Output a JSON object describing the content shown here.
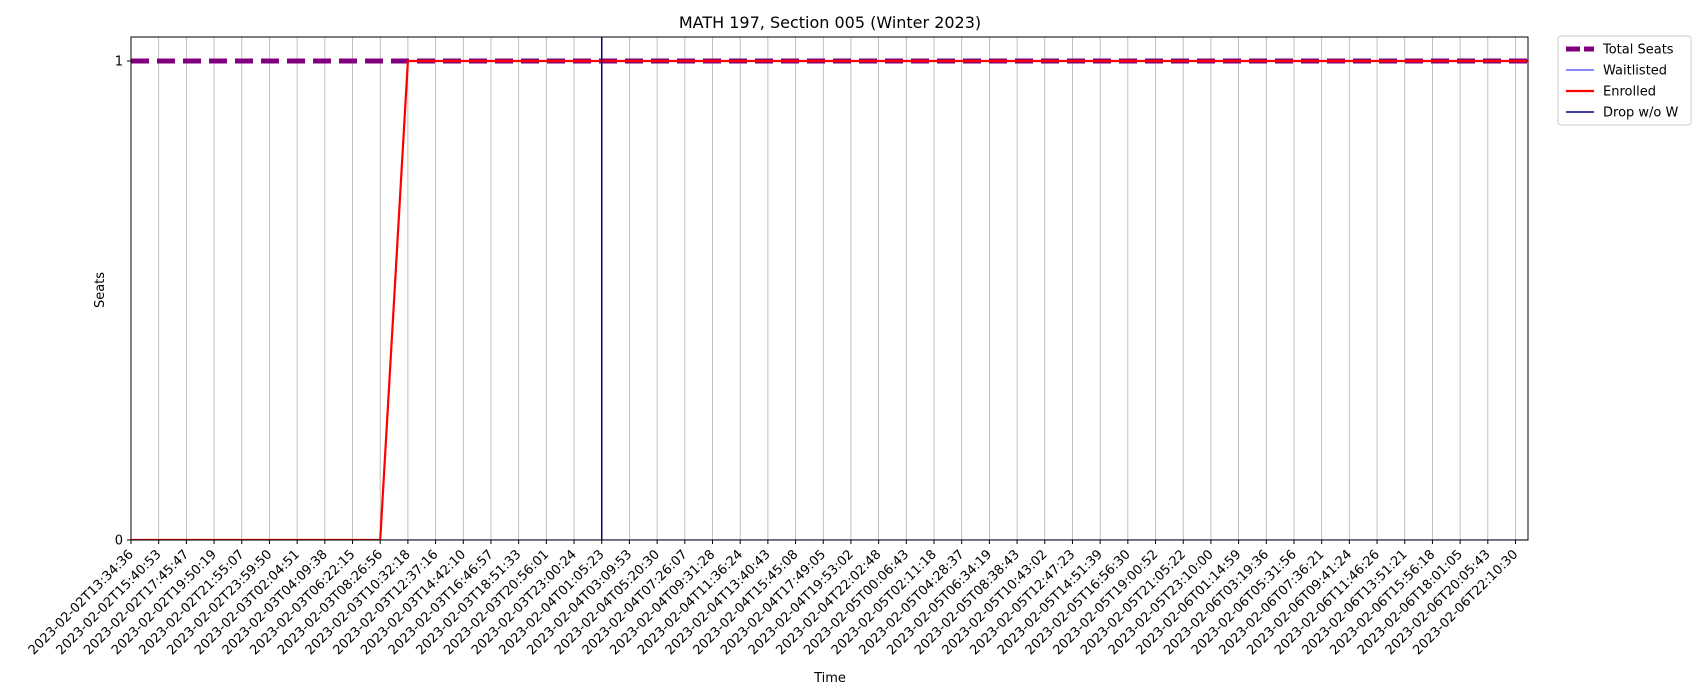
{
  "chart_data": {
    "type": "line",
    "title": "MATH 197, Section 005 (Winter 2023)",
    "xlabel": "Time",
    "ylabel": "Seats",
    "ylim": [
      0,
      1.05
    ],
    "yticks": [
      0,
      1
    ],
    "grid": "x",
    "legend_position": "outside-top-right",
    "x": [
      "2023-02-02T13:34:36",
      "2023-02-02T15:40:53",
      "2023-02-02T17:45:47",
      "2023-02-02T19:50:19",
      "2023-02-02T21:55:07",
      "2023-02-02T23:59:50",
      "2023-02-03T02:04:51",
      "2023-02-03T04:09:38",
      "2023-02-03T06:22:15",
      "2023-02-03T08:26:56",
      "2023-02-03T10:32:18",
      "2023-02-03T12:37:16",
      "2023-02-03T14:42:10",
      "2023-02-03T16:46:57",
      "2023-02-03T18:51:33",
      "2023-02-03T20:56:01",
      "2023-02-03T23:00:24",
      "2023-02-04T01:05:23",
      "2023-02-04T03:09:53",
      "2023-02-04T05:20:30",
      "2023-02-04T07:26:07",
      "2023-02-04T09:31:28",
      "2023-02-04T11:36:24",
      "2023-02-04T13:40:43",
      "2023-02-04T15:45:08",
      "2023-02-04T17:49:05",
      "2023-02-04T19:53:02",
      "2023-02-04T22:02:48",
      "2023-02-05T00:06:43",
      "2023-02-05T02:11:18",
      "2023-02-05T04:28:37",
      "2023-02-05T06:34:19",
      "2023-02-05T08:38:43",
      "2023-02-05T10:43:02",
      "2023-02-05T12:47:23",
      "2023-02-05T14:51:39",
      "2023-02-05T16:56:30",
      "2023-02-05T19:00:52",
      "2023-02-05T21:05:22",
      "2023-02-05T23:10:00",
      "2023-02-06T01:14:59",
      "2023-02-06T03:19:36",
      "2023-02-06T05:31:56",
      "2023-02-06T07:36:21",
      "2023-02-06T09:41:24",
      "2023-02-06T11:46:26",
      "2023-02-06T13:51:21",
      "2023-02-06T15:56:18",
      "2023-02-06T18:01:05",
      "2023-02-06T20:05:43",
      "2023-02-06T22:10:30"
    ],
    "series": [
      {
        "name": "Total Seats",
        "color": "#800080",
        "style": "dashed-thick",
        "values": [
          1,
          1,
          1,
          1,
          1,
          1,
          1,
          1,
          1,
          1,
          1,
          1,
          1,
          1,
          1,
          1,
          1,
          1,
          1,
          1,
          1,
          1,
          1,
          1,
          1,
          1,
          1,
          1,
          1,
          1,
          1,
          1,
          1,
          1,
          1,
          1,
          1,
          1,
          1,
          1,
          1,
          1,
          1,
          1,
          1,
          1,
          1,
          1,
          1,
          1,
          1
        ]
      },
      {
        "name": "Waitlisted",
        "color": "#4040ff",
        "style": "thin",
        "values": [
          0,
          0,
          0,
          0,
          0,
          0,
          0,
          0,
          0,
          0,
          0,
          0,
          0,
          0,
          0,
          0,
          0,
          0,
          0,
          0,
          0,
          0,
          0,
          0,
          0,
          0,
          0,
          0,
          0,
          0,
          0,
          0,
          0,
          0,
          0,
          0,
          0,
          0,
          0,
          0,
          0,
          0,
          0,
          0,
          0,
          0,
          0,
          0,
          0,
          0,
          0
        ]
      },
      {
        "name": "Enrolled",
        "color": "#ff0000",
        "style": "solid",
        "values": [
          0,
          0,
          0,
          0,
          0,
          0,
          0,
          0,
          0,
          0,
          1,
          1,
          1,
          1,
          1,
          1,
          1,
          1,
          1,
          1,
          1,
          1,
          1,
          1,
          1,
          1,
          1,
          1,
          1,
          1,
          1,
          1,
          1,
          1,
          1,
          1,
          1,
          1,
          1,
          1,
          1,
          1,
          1,
          1,
          1,
          1,
          1,
          1,
          1,
          1,
          1
        ]
      },
      {
        "name": "Drop w/o W",
        "color": "#000080",
        "style": "vertical-line",
        "at": "2023-02-04T01:05:23"
      }
    ]
  }
}
